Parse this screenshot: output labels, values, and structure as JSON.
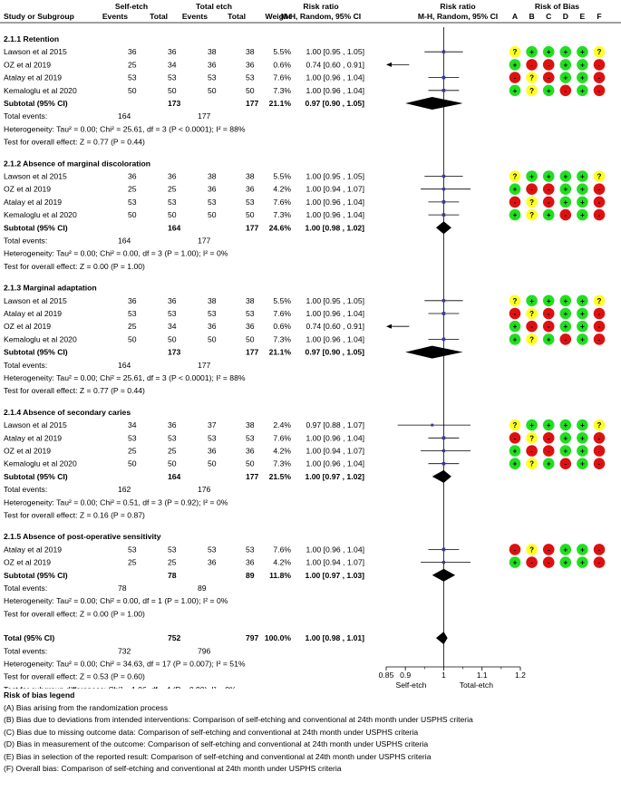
{
  "headers": {
    "study": "Study or Subgroup",
    "group1": "Self-etch",
    "group2": "Total etch",
    "events": "Events",
    "total": "Total",
    "weight": "Weight",
    "rr_title": "Risk ratio",
    "rr_method": "M-H, Random, 95% CI",
    "plot_title": "Risk ratio",
    "plot_method": "M-H, Random, 95% CI",
    "bias_title": "Risk of Bias",
    "bias_cols": [
      "A",
      "B",
      "C",
      "D",
      "E",
      "F"
    ]
  },
  "colors": {
    "low": "#22dd22",
    "unclear": "#ffff22",
    "high": "#dd1111",
    "marker": "#3a3a9a"
  },
  "chart_data": {
    "type": "forest",
    "title": "Risk ratio",
    "xlabel_left": "Self-etch",
    "xlabel_right": "Total-etch",
    "xlim": [
      0.85,
      1.2
    ],
    "xticks": [
      0.85,
      0.9,
      1,
      1.1,
      1.2
    ],
    "xtick_labels": [
      "0.85",
      "0.9",
      "1",
      "1.1",
      "1.2"
    ],
    "null_value": 1,
    "subgroups": [
      {
        "title": "2.1.1 Retention",
        "studies": [
          {
            "name": "Lawson et al 2015",
            "e1": "36",
            "t1": "36",
            "e2": "38",
            "t2": "38",
            "weight": "5.5%",
            "ci_text": "1.00 [0.95 , 1.05]",
            "rr": 1.0,
            "lo": 0.95,
            "hi": 1.05,
            "bias": [
              "?",
              "+",
              "+",
              "+",
              "+",
              "?"
            ]
          },
          {
            "name": "OZ et al 2019",
            "e1": "25",
            "t1": "34",
            "e2": "36",
            "t2": "36",
            "weight": "0.6%",
            "ci_text": "0.74 [0.60 , 0.91]",
            "rr": 0.74,
            "lo": 0.6,
            "hi": 0.91,
            "bias": [
              "+",
              "-",
              "-",
              "+",
              "+",
              "-"
            ]
          },
          {
            "name": "Atalay et al 2019",
            "e1": "53",
            "t1": "53",
            "e2": "53",
            "t2": "53",
            "weight": "7.6%",
            "ci_text": "1.00 [0.96 , 1.04]",
            "rr": 1.0,
            "lo": 0.96,
            "hi": 1.04,
            "bias": [
              "-",
              "?",
              "-",
              "+",
              "+",
              "-"
            ]
          },
          {
            "name": "Kemaloglu et al 2020",
            "e1": "50",
            "t1": "50",
            "e2": "50",
            "t2": "50",
            "weight": "7.3%",
            "ci_text": "1.00 [0.96 , 1.04]",
            "rr": 1.0,
            "lo": 0.96,
            "hi": 1.04,
            "bias": [
              "+",
              "?",
              "+",
              "-",
              "+",
              "-"
            ]
          }
        ],
        "subtotal": {
          "label": "Subtotal (95% CI)",
          "t1": "173",
          "t2": "177",
          "weight": "21.1%",
          "ci_text": "0.97 [0.90 , 1.05]",
          "rr": 0.97,
          "lo": 0.9,
          "hi": 1.05
        },
        "events_label": "Total events:",
        "ev1": "164",
        "ev2": "177",
        "heterogeneity": "Heterogeneity: Tau² = 0.00; Chi² = 25.61, df = 3 (P < 0.0001); I² = 88%",
        "overall": "Test for overall effect: Z = 0.77 (P = 0.44)"
      },
      {
        "title": "2.1.2 Absence of marginal discoloration",
        "studies": [
          {
            "name": "Lawson et al 2015",
            "e1": "36",
            "t1": "36",
            "e2": "38",
            "t2": "38",
            "weight": "5.5%",
            "ci_text": "1.00 [0.95 , 1.05]",
            "rr": 1.0,
            "lo": 0.95,
            "hi": 1.05,
            "bias": [
              "?",
              "+",
              "+",
              "+",
              "+",
              "?"
            ]
          },
          {
            "name": "OZ et al 2019",
            "e1": "25",
            "t1": "25",
            "e2": "36",
            "t2": "36",
            "weight": "4.2%",
            "ci_text": "1.00 [0.94 , 1.07]",
            "rr": 1.0,
            "lo": 0.94,
            "hi": 1.07,
            "bias": [
              "+",
              "-",
              "-",
              "+",
              "+",
              "-"
            ]
          },
          {
            "name": "Atalay et al 2019",
            "e1": "53",
            "t1": "53",
            "e2": "53",
            "t2": "53",
            "weight": "7.6%",
            "ci_text": "1.00 [0.96 , 1.04]",
            "rr": 1.0,
            "lo": 0.96,
            "hi": 1.04,
            "bias": [
              "-",
              "?",
              "-",
              "+",
              "+",
              "-"
            ]
          },
          {
            "name": "Kemaloglu et al 2020",
            "e1": "50",
            "t1": "50",
            "e2": "50",
            "t2": "50",
            "weight": "7.3%",
            "ci_text": "1.00 [0.96 , 1.04]",
            "rr": 1.0,
            "lo": 0.96,
            "hi": 1.04,
            "bias": [
              "+",
              "?",
              "+",
              "-",
              "+",
              "-"
            ]
          }
        ],
        "subtotal": {
          "label": "Subtotal (95% CI)",
          "t1": "164",
          "t2": "177",
          "weight": "24.6%",
          "ci_text": "1.00 [0.98 , 1.02]",
          "rr": 1.0,
          "lo": 0.98,
          "hi": 1.02
        },
        "events_label": "Total events:",
        "ev1": "164",
        "ev2": "177",
        "heterogeneity": "Heterogeneity: Tau² = 0.00; Chi² = 0.00, df = 3 (P = 1.00); I² = 0%",
        "overall": "Test for overall effect: Z = 0.00 (P = 1.00)"
      },
      {
        "title": "2.1.3 Marginal adaptation",
        "studies": [
          {
            "name": "Lawson et al 2015",
            "e1": "36",
            "t1": "36",
            "e2": "38",
            "t2": "38",
            "weight": "5.5%",
            "ci_text": "1.00 [0.95 , 1.05]",
            "rr": 1.0,
            "lo": 0.95,
            "hi": 1.05,
            "bias": [
              "?",
              "+",
              "+",
              "+",
              "+",
              "?"
            ]
          },
          {
            "name": "Atalay et al 2019",
            "e1": "53",
            "t1": "53",
            "e2": "53",
            "t2": "53",
            "weight": "7.6%",
            "ci_text": "1.00 [0.96 , 1.04]",
            "rr": 1.0,
            "lo": 0.96,
            "hi": 1.04,
            "bias": [
              "-",
              "?",
              "-",
              "+",
              "+",
              "-"
            ]
          },
          {
            "name": "OZ et al 2019",
            "e1": "25",
            "t1": "34",
            "e2": "36",
            "t2": "36",
            "weight": "0.6%",
            "ci_text": "0.74 [0.60 , 0.91]",
            "rr": 0.74,
            "lo": 0.6,
            "hi": 0.91,
            "bias": [
              "+",
              "-",
              "-",
              "+",
              "+",
              "-"
            ]
          },
          {
            "name": "Kemaloglu et al 2020",
            "e1": "50",
            "t1": "50",
            "e2": "50",
            "t2": "50",
            "weight": "7.3%",
            "ci_text": "1.00 [0.96 , 1.04]",
            "rr": 1.0,
            "lo": 0.96,
            "hi": 1.04,
            "bias": [
              "+",
              "?",
              "+",
              "-",
              "+",
              "-"
            ]
          }
        ],
        "subtotal": {
          "label": "Subtotal (95% CI)",
          "t1": "173",
          "t2": "177",
          "weight": "21.1%",
          "ci_text": "0.97 [0.90 , 1.05]",
          "rr": 0.97,
          "lo": 0.9,
          "hi": 1.05
        },
        "events_label": "Total events:",
        "ev1": "164",
        "ev2": "177",
        "heterogeneity": "Heterogeneity: Tau² = 0.00; Chi² = 25.61, df = 3 (P < 0.0001); I² = 88%",
        "overall": "Test for overall effect: Z = 0.77 (P = 0.44)"
      },
      {
        "title": "2.1.4 Absence of secondary caries",
        "studies": [
          {
            "name": "Lawson et al 2015",
            "e1": "34",
            "t1": "36",
            "e2": "37",
            "t2": "38",
            "weight": "2.4%",
            "ci_text": "0.97 [0.88 , 1.07]",
            "rr": 0.97,
            "lo": 0.88,
            "hi": 1.07,
            "bias": [
              "?",
              "+",
              "+",
              "+",
              "+",
              "?"
            ]
          },
          {
            "name": "Atalay et al 2019",
            "e1": "53",
            "t1": "53",
            "e2": "53",
            "t2": "53",
            "weight": "7.6%",
            "ci_text": "1.00 [0.96 , 1.04]",
            "rr": 1.0,
            "lo": 0.96,
            "hi": 1.04,
            "bias": [
              "-",
              "?",
              "-",
              "+",
              "+",
              "-"
            ]
          },
          {
            "name": "OZ et al 2019",
            "e1": "25",
            "t1": "25",
            "e2": "36",
            "t2": "36",
            "weight": "4.2%",
            "ci_text": "1.00 [0.94 , 1.07]",
            "rr": 1.0,
            "lo": 0.94,
            "hi": 1.07,
            "bias": [
              "+",
              "-",
              "-",
              "+",
              "+",
              "-"
            ]
          },
          {
            "name": "Kemaloglu et al 2020",
            "e1": "50",
            "t1": "50",
            "e2": "50",
            "t2": "50",
            "weight": "7.3%",
            "ci_text": "1.00 [0.96 , 1.04]",
            "rr": 1.0,
            "lo": 0.96,
            "hi": 1.04,
            "bias": [
              "+",
              "?",
              "+",
              "-",
              "+",
              "-"
            ]
          }
        ],
        "subtotal": {
          "label": "Subtotal (95% CI)",
          "t1": "164",
          "t2": "177",
          "weight": "21.5%",
          "ci_text": "1.00 [0.97 , 1.02]",
          "rr": 1.0,
          "lo": 0.97,
          "hi": 1.02
        },
        "events_label": "Total events:",
        "ev1": "162",
        "ev2": "176",
        "heterogeneity": "Heterogeneity: Tau² = 0.00; Chi² = 0.51, df = 3 (P = 0.92); I² = 0%",
        "overall": "Test for overall effect: Z = 0.16 (P = 0.87)"
      },
      {
        "title": "2.1.5 Absence of post-operative sensitivity",
        "studies": [
          {
            "name": "Atalay et al 2019",
            "e1": "53",
            "t1": "53",
            "e2": "53",
            "t2": "53",
            "weight": "7.6%",
            "ci_text": "1.00 [0.96 , 1.04]",
            "rr": 1.0,
            "lo": 0.96,
            "hi": 1.04,
            "bias": [
              "-",
              "?",
              "-",
              "+",
              "+",
              "-"
            ]
          },
          {
            "name": "OZ et al 2019",
            "e1": "25",
            "t1": "25",
            "e2": "36",
            "t2": "36",
            "weight": "4.2%",
            "ci_text": "1.00 [0.94 , 1.07]",
            "rr": 1.0,
            "lo": 0.94,
            "hi": 1.07,
            "bias": [
              "+",
              "-",
              "-",
              "+",
              "+",
              "-"
            ]
          }
        ],
        "subtotal": {
          "label": "Subtotal (95% CI)",
          "t1": "78",
          "t2": "89",
          "weight": "11.8%",
          "ci_text": "1.00 [0.97 , 1.03]",
          "rr": 1.0,
          "lo": 0.97,
          "hi": 1.03
        },
        "events_label": "Total events:",
        "ev1": "78",
        "ev2": "89",
        "heterogeneity": "Heterogeneity: Tau² = 0.00; Chi² = 0.00, df = 1 (P = 1.00); I² = 0%",
        "overall": "Test for overall effect: Z = 0.00 (P = 1.00)"
      }
    ],
    "total": {
      "label": "Total (95% CI)",
      "t1": "752",
      "t2": "797",
      "weight": "100.0%",
      "ci_text": "1.00 [0.98 , 1.01]",
      "rr": 1.0,
      "lo": 0.98,
      "hi": 1.01,
      "events_label": "Total events:",
      "ev1": "732",
      "ev2": "796",
      "heterogeneity": "Heterogeneity: Tau² = 0.00; Chi² = 34.63, df = 17 (P = 0.007); I² = 51%",
      "overall": "Test for overall effect: Z = 0.53 (P = 0.60)",
      "subgroup_diff": "Test for subgroup differences: Chi² = 1.06, df = 4 (P = 0.90), I² = 0%"
    }
  },
  "legend": {
    "title": "Risk of bias legend",
    "items": [
      "(A) Bias arising from the randomization process",
      "(B) Bias due to deviations from intended interventions: Comparison of self-etching and conventional at 24th month under USPHS criteria",
      "(C) Bias due to missing outcome data: Comparison of self-etching and conventional at 24th month under USPHS criteria",
      "(D) Bias in measurement of the outcome: Comparison of self-etching and conventional at 24th month under USPHS criteria",
      "(E) Bias in selection of the reported result: Comparison of self-etching and conventional at 24th month under USPHS criteria",
      "(F) Overall bias: Comparison of self-etching and conventional at 24th month under USPHS criteria"
    ]
  }
}
